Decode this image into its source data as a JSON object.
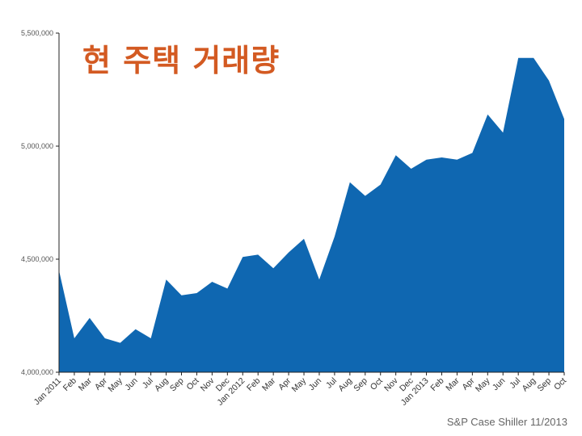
{
  "chart_data": {
    "type": "area",
    "title": "현 주택 거래량",
    "xlabel": "",
    "ylabel": "",
    "source": "S&P Case Shiller 11/2013",
    "ylim": [
      4000000,
      5500000
    ],
    "yticks": [
      {
        "value": 4000000,
        "label": "4,000,000"
      },
      {
        "value": 4500000,
        "label": "4,500,000"
      },
      {
        "value": 5000000,
        "label": "5,000,000"
      },
      {
        "value": 5500000,
        "label": "5,500,000"
      }
    ],
    "categories": [
      "Jan 2011",
      "Feb",
      "Mar",
      "Apr",
      "May",
      "Jun",
      "Jul",
      "Aug",
      "Sep",
      "Oct",
      "Nov",
      "Dec",
      "Jan 2012",
      "Feb",
      "Mar",
      "Apr",
      "May",
      "Jun",
      "Jul",
      "Aug",
      "Sep",
      "Oct",
      "Nov",
      "Dec",
      "Jan 2013",
      "Feb",
      "Mar",
      "Apr",
      "May",
      "Jun",
      "Jul",
      "Aug",
      "Sep",
      "Oct"
    ],
    "values": [
      4450000,
      4150000,
      4240000,
      4150000,
      4130000,
      4190000,
      4150000,
      4410000,
      4340000,
      4350000,
      4400000,
      4370000,
      4510000,
      4520000,
      4460000,
      4530000,
      4590000,
      4410000,
      4600000,
      4840000,
      4780000,
      4830000,
      4960000,
      4900000,
      4940000,
      4950000,
      4940000,
      4970000,
      5140000,
      5060000,
      5390000,
      5390000,
      5290000,
      5120000
    ],
    "color": "#0f67b1",
    "grid": false
  }
}
